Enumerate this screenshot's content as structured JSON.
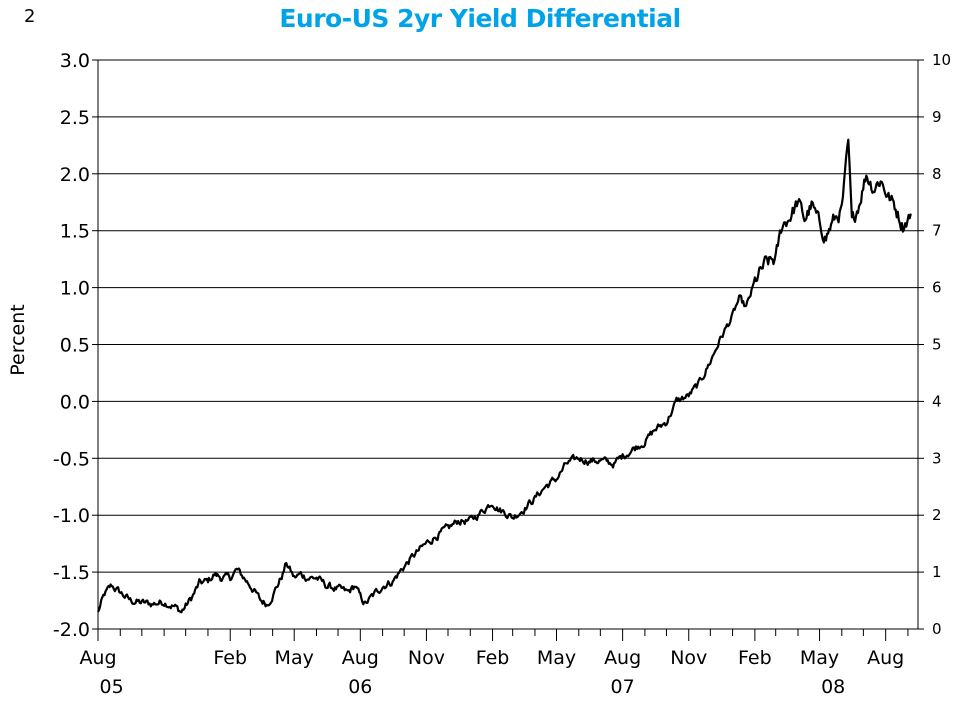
{
  "page_number": "2",
  "chart_data": {
    "type": "line",
    "title": "Euro-US 2yr Yield Differential",
    "xlabel": "",
    "ylabel": "Percent",
    "ylim": [
      -2.0,
      3.0
    ],
    "y_ticks": [
      "3.0",
      "2.5",
      "2.0",
      "1.5",
      "1.0",
      "0.5",
      "0.0",
      "-0.5",
      "-1.0",
      "-1.5",
      "-2.0"
    ],
    "y2lim": [
      0,
      10
    ],
    "y2_ticks": [
      "10",
      "9",
      "8",
      "7",
      "6",
      "5",
      "4",
      "3",
      "2",
      "1",
      "0"
    ],
    "x_range": [
      "2005-08-01",
      "2008-09-15"
    ],
    "x_month_labels": [
      "Aug",
      "Feb",
      "May",
      "Aug",
      "Nov",
      "Feb",
      "May",
      "Aug",
      "Nov",
      "Feb",
      "May",
      "Aug"
    ],
    "x_month_dates": [
      "2005-08-01",
      "2006-02-01",
      "2006-05-01",
      "2006-08-01",
      "2006-11-01",
      "2007-02-01",
      "2007-05-01",
      "2007-08-01",
      "2007-11-01",
      "2008-02-01",
      "2008-05-01",
      "2008-08-01"
    ],
    "x_year_labels": [
      "05",
      "06",
      "07",
      "08"
    ],
    "x_year_dates": [
      "2005-08-20",
      "2006-08-01",
      "2007-08-01",
      "2008-05-20"
    ],
    "grid": true,
    "series": [
      {
        "values": [
          [
            "2005-08-01",
            -1.85
          ],
          [
            "2005-08-10",
            -1.7
          ],
          [
            "2005-08-20",
            -1.62
          ],
          [
            "2005-09-01",
            -1.68
          ],
          [
            "2005-09-15",
            -1.75
          ],
          [
            "2005-10-01",
            -1.77
          ],
          [
            "2005-10-15",
            -1.78
          ],
          [
            "2005-11-01",
            -1.76
          ],
          [
            "2005-11-15",
            -1.8
          ],
          [
            "2005-11-25",
            -1.85
          ],
          [
            "2005-12-10",
            -1.72
          ],
          [
            "2005-12-20",
            -1.6
          ],
          [
            "2006-01-01",
            -1.58
          ],
          [
            "2006-01-10",
            -1.52
          ],
          [
            "2006-01-20",
            -1.55
          ],
          [
            "2006-02-01",
            -1.55
          ],
          [
            "2006-02-10",
            -1.48
          ],
          [
            "2006-02-20",
            -1.55
          ],
          [
            "2006-03-05",
            -1.65
          ],
          [
            "2006-03-15",
            -1.75
          ],
          [
            "2006-03-25",
            -1.78
          ],
          [
            "2006-04-05",
            -1.65
          ],
          [
            "2006-04-15",
            -1.52
          ],
          [
            "2006-04-20",
            -1.42
          ],
          [
            "2006-05-01",
            -1.55
          ],
          [
            "2006-05-10",
            -1.52
          ],
          [
            "2006-05-20",
            -1.55
          ],
          [
            "2006-06-01",
            -1.55
          ],
          [
            "2006-06-15",
            -1.62
          ],
          [
            "2006-07-01",
            -1.65
          ],
          [
            "2006-07-15",
            -1.68
          ],
          [
            "2006-07-25",
            -1.62
          ],
          [
            "2006-08-01",
            -1.72
          ],
          [
            "2006-08-08",
            -1.78
          ],
          [
            "2006-08-20",
            -1.7
          ],
          [
            "2006-09-01",
            -1.62
          ],
          [
            "2006-09-15",
            -1.58
          ],
          [
            "2006-10-01",
            -1.45
          ],
          [
            "2006-10-15",
            -1.35
          ],
          [
            "2006-11-01",
            -1.25
          ],
          [
            "2006-11-15",
            -1.18
          ],
          [
            "2006-12-01",
            -1.12
          ],
          [
            "2006-12-15",
            -1.05
          ],
          [
            "2007-01-01",
            -1.05
          ],
          [
            "2007-01-15",
            -0.98
          ],
          [
            "2007-02-01",
            -0.88
          ],
          [
            "2007-02-10",
            -0.95
          ],
          [
            "2007-02-20",
            -0.98
          ],
          [
            "2007-03-01",
            -1.02
          ],
          [
            "2007-03-15",
            -0.95
          ],
          [
            "2007-04-01",
            -0.85
          ],
          [
            "2007-04-15",
            -0.75
          ],
          [
            "2007-05-01",
            -0.68
          ],
          [
            "2007-05-15",
            -0.55
          ],
          [
            "2007-06-01",
            -0.5
          ],
          [
            "2007-06-15",
            -0.52
          ],
          [
            "2007-07-01",
            -0.52
          ],
          [
            "2007-07-20",
            -0.55
          ],
          [
            "2007-08-01",
            -0.48
          ],
          [
            "2007-08-15",
            -0.42
          ],
          [
            "2007-09-01",
            -0.35
          ],
          [
            "2007-09-15",
            -0.25
          ],
          [
            "2007-10-01",
            -0.18
          ],
          [
            "2007-10-15",
            0.0
          ],
          [
            "2007-11-01",
            0.05
          ],
          [
            "2007-11-15",
            0.15
          ],
          [
            "2007-12-01",
            0.35
          ],
          [
            "2007-12-15",
            0.55
          ],
          [
            "2008-01-01",
            0.75
          ],
          [
            "2008-01-10",
            0.9
          ],
          [
            "2008-01-20",
            0.82
          ],
          [
            "2008-02-01",
            1.05
          ],
          [
            "2008-02-15",
            1.2
          ],
          [
            "2008-03-01",
            1.25
          ],
          [
            "2008-03-10",
            1.55
          ],
          [
            "2008-03-20",
            1.62
          ],
          [
            "2008-04-01",
            1.75
          ],
          [
            "2008-04-10",
            1.6
          ],
          [
            "2008-04-20",
            1.72
          ],
          [
            "2008-05-01",
            1.55
          ],
          [
            "2008-05-10",
            1.45
          ],
          [
            "2008-05-20",
            1.58
          ],
          [
            "2008-06-01",
            1.68
          ],
          [
            "2008-06-10",
            2.25
          ],
          [
            "2008-06-15",
            1.55
          ],
          [
            "2008-06-25",
            1.75
          ],
          [
            "2008-07-05",
            2.0
          ],
          [
            "2008-07-15",
            1.88
          ],
          [
            "2008-07-25",
            1.95
          ],
          [
            "2008-08-05",
            1.8
          ],
          [
            "2008-08-15",
            1.7
          ],
          [
            "2008-08-25",
            1.55
          ],
          [
            "2008-09-05",
            1.65
          ]
        ]
      }
    ]
  }
}
